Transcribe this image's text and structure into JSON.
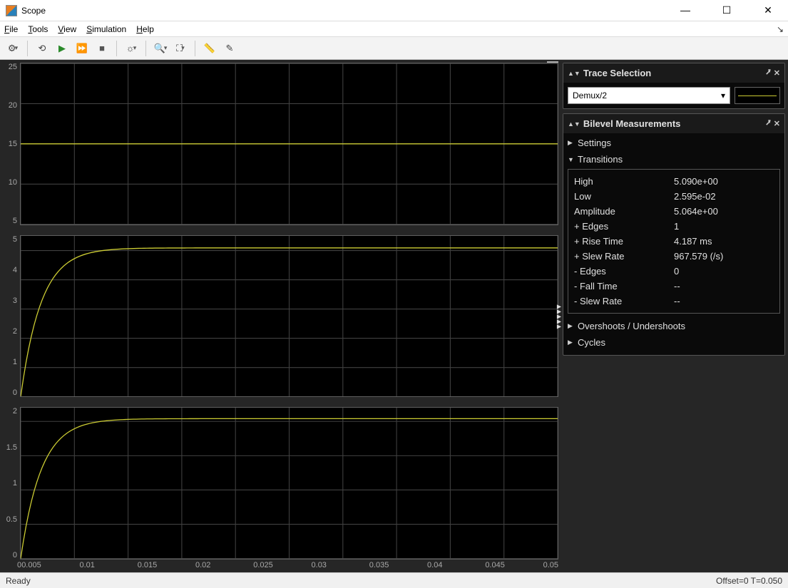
{
  "window": {
    "title": "Scope",
    "controls": {
      "min": "—",
      "max": "☐",
      "close": "✕"
    }
  },
  "menu": {
    "file": "File",
    "tools": "Tools",
    "view": "View",
    "simulation": "Simulation",
    "help": "Help"
  },
  "toolbar_icons": {
    "settings": "⚙",
    "dd1": "▾",
    "step_back": "⟲",
    "run": "▶",
    "step_fwd": "⏩",
    "stop": "■",
    "highlight": "☼",
    "dd2": "▾",
    "zoom": "🔍",
    "dd3": "▾",
    "autoscale": "⛶",
    "dd4": "▾",
    "measure": "📏",
    "annotate": "✎"
  },
  "plots_common": {
    "background_color": "#000000",
    "grid_color": "#404040",
    "axis_text_color": "#a9a9a9",
    "line_color": "#cccc33",
    "xlim": [
      0,
      0.05
    ],
    "xticks": [
      0,
      0.005,
      0.01,
      0.015,
      0.02,
      0.025,
      0.03,
      0.035,
      0.04,
      0.045,
      0.05
    ],
    "xtick_labels": [
      "0",
      "0.005",
      "0.01",
      "0.015",
      "0.02",
      "0.025",
      "0.03",
      "0.035",
      "0.04",
      "0.045",
      "0.05"
    ]
  },
  "plots": [
    {
      "type": "line",
      "ylim": [
        5,
        25
      ],
      "yticks": [
        5,
        10,
        15,
        20,
        25
      ],
      "ytick_labels": [
        "5",
        "10",
        "15",
        "20",
        "25"
      ],
      "curve": "constant",
      "constant_value": 15
    },
    {
      "type": "line",
      "ylim": [
        0,
        5.5
      ],
      "yticks": [
        0,
        1,
        2,
        3,
        4,
        5
      ],
      "ytick_labels": [
        "0",
        "1",
        "2",
        "3",
        "4",
        "5"
      ],
      "curve": "first_order",
      "final_value": 5.09,
      "tau": 0.0019
    },
    {
      "type": "line",
      "ylim": [
        0,
        2.2
      ],
      "yticks": [
        0,
        0.5,
        1,
        1.5,
        2
      ],
      "ytick_labels": [
        "0",
        "0.5",
        "1",
        "1.5",
        "2"
      ],
      "curve": "first_order",
      "final_value": 2.04,
      "tau": 0.0019
    }
  ],
  "trace_panel": {
    "title": "Trace Selection",
    "selected": "Demux/2"
  },
  "bilevel_panel": {
    "title": "Bilevel Measurements",
    "settings_label": "Settings",
    "transitions_label": "Transitions",
    "overshoots_label": "Overshoots / Undershoots",
    "cycles_label": "Cycles",
    "rows": [
      {
        "label": "High",
        "value": "5.090e+00"
      },
      {
        "label": "Low",
        "value": "2.595e-02"
      },
      {
        "label": "Amplitude",
        "value": "5.064e+00"
      },
      {
        "label": "+ Edges",
        "value": "1"
      },
      {
        "label": "+ Rise Time",
        "value": "4.187 ms"
      },
      {
        "label": "+ Slew Rate",
        "value": "967.579 (/s)"
      },
      {
        "label": "- Edges",
        "value": "0"
      },
      {
        "label": "- Fall Time",
        "value": "--"
      },
      {
        "label": "- Slew Rate",
        "value": "--"
      }
    ]
  },
  "status": {
    "left": "Ready",
    "right": "Offset=0   T=0.050"
  }
}
